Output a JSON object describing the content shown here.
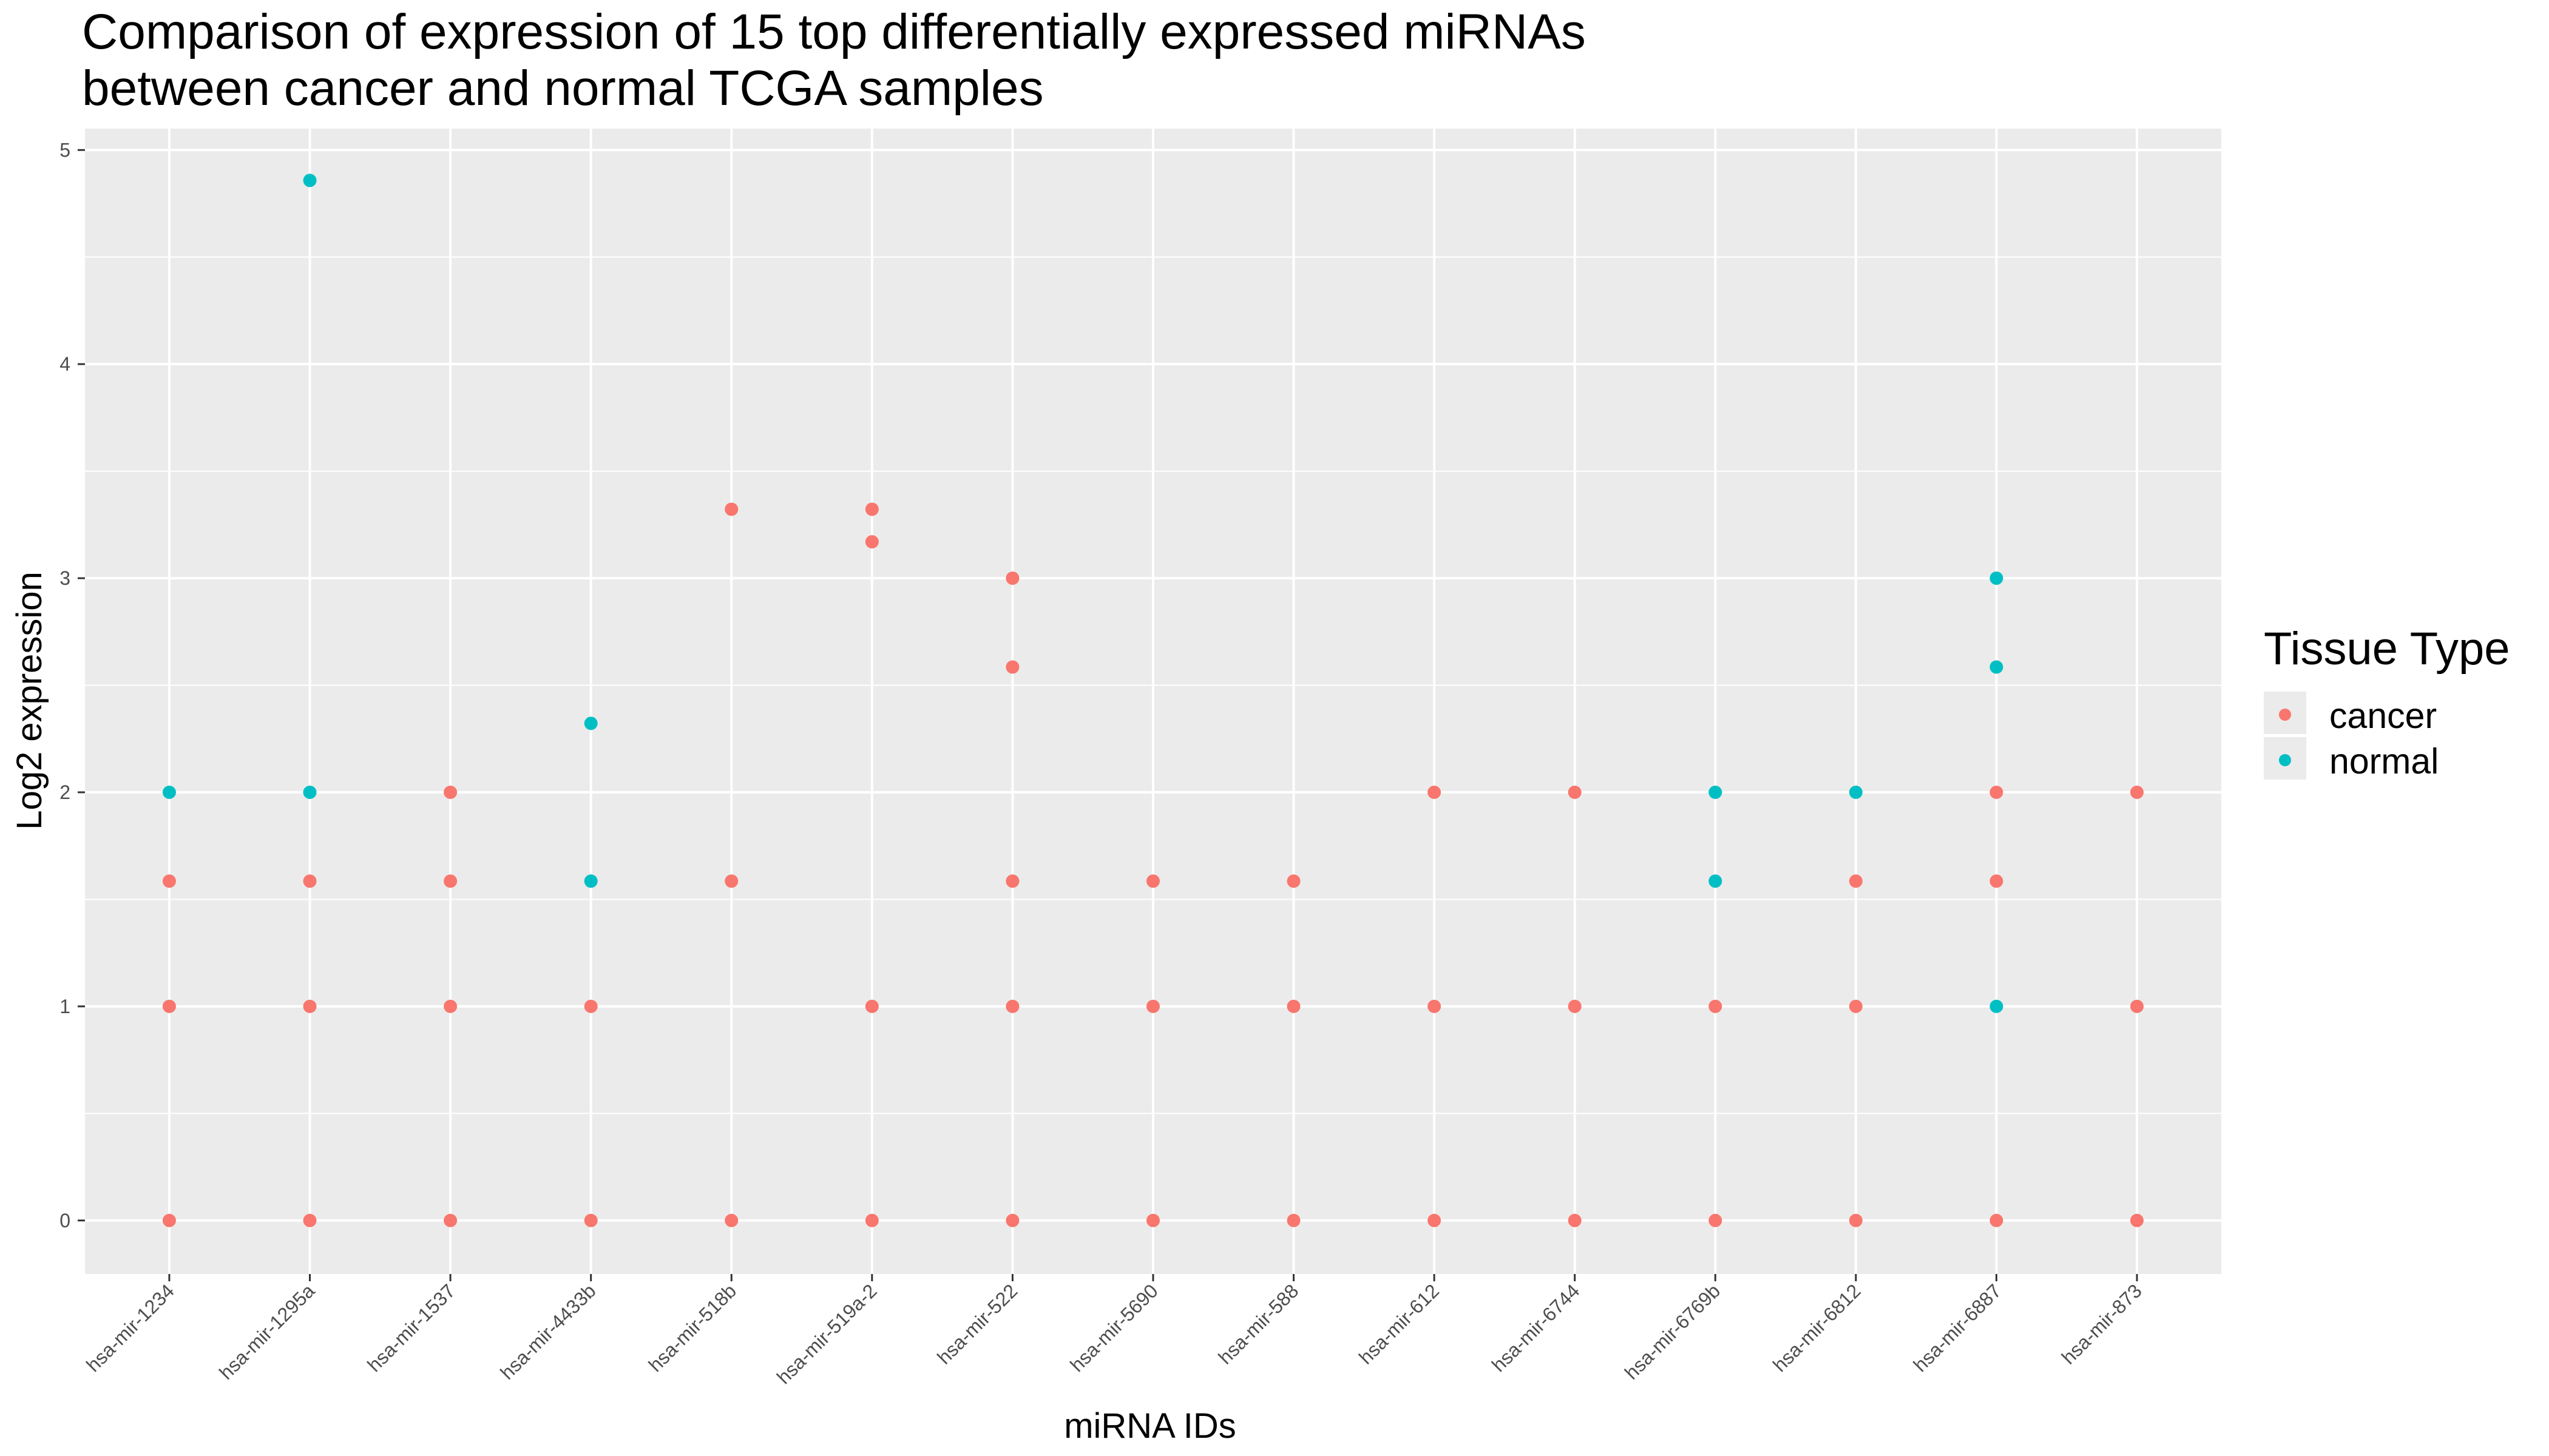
{
  "chart_data": {
    "type": "scatter",
    "title": [
      "Comparison of expression of 15 top differentially expressed miRNAs",
      "between cancer and normal TCGA samples"
    ],
    "xlabel": "miRNA IDs",
    "ylabel": "Log2 expression",
    "ylim": [
      -0.25,
      5.1
    ],
    "yticks": [
      "0",
      "1",
      "2",
      "3",
      "4",
      "5"
    ],
    "grid": true,
    "legend": {
      "title": "Tissue Type",
      "position": "right"
    },
    "categories": [
      "hsa-mir-1234",
      "hsa-mir-1295a",
      "hsa-mir-1537",
      "hsa-mir-4433b",
      "hsa-mir-518b",
      "hsa-mir-519a-2",
      "hsa-mir-522",
      "hsa-mir-5690",
      "hsa-mir-588",
      "hsa-mir-612",
      "hsa-mir-6744",
      "hsa-mir-6769b",
      "hsa-mir-6812",
      "hsa-mir-6887",
      "hsa-mir-873"
    ],
    "series": [
      {
        "name": "cancer",
        "color": "#F8766D",
        "points": [
          {
            "x": "hsa-mir-1234",
            "y": 0
          },
          {
            "x": "hsa-mir-1234",
            "y": 1
          },
          {
            "x": "hsa-mir-1234",
            "y": 1.585
          },
          {
            "x": "hsa-mir-1295a",
            "y": 0
          },
          {
            "x": "hsa-mir-1295a",
            "y": 1
          },
          {
            "x": "hsa-mir-1295a",
            "y": 1.585
          },
          {
            "x": "hsa-mir-1537",
            "y": 0
          },
          {
            "x": "hsa-mir-1537",
            "y": 1
          },
          {
            "x": "hsa-mir-1537",
            "y": 1.585
          },
          {
            "x": "hsa-mir-1537",
            "y": 2
          },
          {
            "x": "hsa-mir-4433b",
            "y": 0
          },
          {
            "x": "hsa-mir-4433b",
            "y": 1
          },
          {
            "x": "hsa-mir-518b",
            "y": 0
          },
          {
            "x": "hsa-mir-518b",
            "y": 1.585
          },
          {
            "x": "hsa-mir-518b",
            "y": 3.322
          },
          {
            "x": "hsa-mir-519a-2",
            "y": 0
          },
          {
            "x": "hsa-mir-519a-2",
            "y": 1
          },
          {
            "x": "hsa-mir-519a-2",
            "y": 3.17
          },
          {
            "x": "hsa-mir-519a-2",
            "y": 3.322
          },
          {
            "x": "hsa-mir-522",
            "y": 0
          },
          {
            "x": "hsa-mir-522",
            "y": 1
          },
          {
            "x": "hsa-mir-522",
            "y": 1.585
          },
          {
            "x": "hsa-mir-522",
            "y": 2.585
          },
          {
            "x": "hsa-mir-522",
            "y": 3
          },
          {
            "x": "hsa-mir-5690",
            "y": 0
          },
          {
            "x": "hsa-mir-5690",
            "y": 1
          },
          {
            "x": "hsa-mir-5690",
            "y": 1.585
          },
          {
            "x": "hsa-mir-588",
            "y": 0
          },
          {
            "x": "hsa-mir-588",
            "y": 1
          },
          {
            "x": "hsa-mir-588",
            "y": 1.585
          },
          {
            "x": "hsa-mir-612",
            "y": 0
          },
          {
            "x": "hsa-mir-612",
            "y": 1
          },
          {
            "x": "hsa-mir-612",
            "y": 2
          },
          {
            "x": "hsa-mir-6744",
            "y": 0
          },
          {
            "x": "hsa-mir-6744",
            "y": 1
          },
          {
            "x": "hsa-mir-6744",
            "y": 2
          },
          {
            "x": "hsa-mir-6769b",
            "y": 0
          },
          {
            "x": "hsa-mir-6769b",
            "y": 1
          },
          {
            "x": "hsa-mir-6812",
            "y": 0
          },
          {
            "x": "hsa-mir-6812",
            "y": 1
          },
          {
            "x": "hsa-mir-6812",
            "y": 1.585
          },
          {
            "x": "hsa-mir-6887",
            "y": 0
          },
          {
            "x": "hsa-mir-6887",
            "y": 1.585
          },
          {
            "x": "hsa-mir-6887",
            "y": 2
          },
          {
            "x": "hsa-mir-873",
            "y": 0
          },
          {
            "x": "hsa-mir-873",
            "y": 1
          },
          {
            "x": "hsa-mir-873",
            "y": 2
          }
        ]
      },
      {
        "name": "normal",
        "color": "#00BFC4",
        "points": [
          {
            "x": "hsa-mir-1234",
            "y": 2
          },
          {
            "x": "hsa-mir-1295a",
            "y": 2
          },
          {
            "x": "hsa-mir-1295a",
            "y": 4.858
          },
          {
            "x": "hsa-mir-4433b",
            "y": 1.585
          },
          {
            "x": "hsa-mir-4433b",
            "y": 2.322
          },
          {
            "x": "hsa-mir-6769b",
            "y": 1.585
          },
          {
            "x": "hsa-mir-6769b",
            "y": 2
          },
          {
            "x": "hsa-mir-6812",
            "y": 2
          },
          {
            "x": "hsa-mir-6887",
            "y": 1
          },
          {
            "x": "hsa-mir-6887",
            "y": 2.585
          },
          {
            "x": "hsa-mir-6887",
            "y": 3
          }
        ]
      }
    ]
  }
}
